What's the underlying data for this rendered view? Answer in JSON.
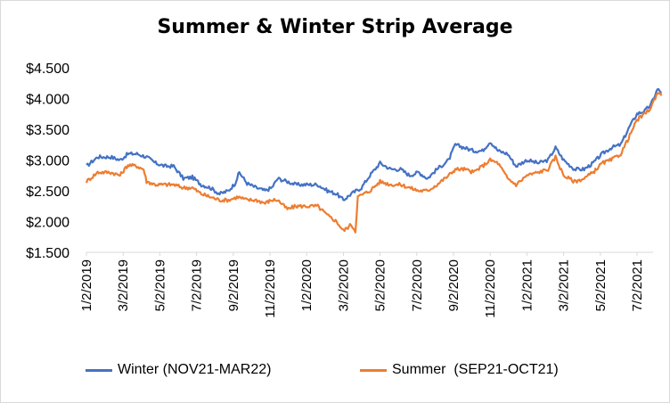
{
  "chart_data": {
    "type": "line",
    "title": "Summer & Winter Strip Average",
    "xlabel": "",
    "ylabel": "",
    "ylim": [
      1.5,
      4.5
    ],
    "yticks": [
      "$4.500",
      "$4.000",
      "$3.500",
      "$3.000",
      "$2.500",
      "$2.000",
      "$1.500"
    ],
    "ytick_values": [
      4.5,
      4.0,
      3.5,
      3.0,
      2.5,
      2.0,
      1.5
    ],
    "xticks": [
      "1/2/2019",
      "3/2/2019",
      "5/2/2019",
      "7/2/2019",
      "9/2/2019",
      "11/2/2019",
      "1/2/2020",
      "3/2/2020",
      "5/2/2020",
      "7/2/2020",
      "9/2/2020",
      "11/2/2020",
      "1/2/2021",
      "3/2/2021",
      "5/2/2021",
      "7/2/2021"
    ],
    "grid": false,
    "legend_position": "bottom",
    "series": [
      {
        "name": "Winter (NOV21-MAR22)",
        "color": "#4472c4",
        "points": [
          [
            "2019-01-02",
            2.9
          ],
          [
            "2019-01-20",
            3.05
          ],
          [
            "2019-02-10",
            3.05
          ],
          [
            "2019-02-25",
            3.0
          ],
          [
            "2019-03-10",
            3.1
          ],
          [
            "2019-03-25",
            3.1
          ],
          [
            "2019-04-10",
            3.05
          ],
          [
            "2019-04-25",
            2.95
          ],
          [
            "2019-05-10",
            2.9
          ],
          [
            "2019-05-25",
            2.9
          ],
          [
            "2019-06-10",
            2.7
          ],
          [
            "2019-06-25",
            2.72
          ],
          [
            "2019-07-10",
            2.6
          ],
          [
            "2019-07-25",
            2.55
          ],
          [
            "2019-08-10",
            2.45
          ],
          [
            "2019-08-25",
            2.5
          ],
          [
            "2019-09-05",
            2.62
          ],
          [
            "2019-09-12",
            2.8
          ],
          [
            "2019-09-25",
            2.62
          ],
          [
            "2019-10-10",
            2.55
          ],
          [
            "2019-10-25",
            2.5
          ],
          [
            "2019-11-05",
            2.55
          ],
          [
            "2019-11-15",
            2.7
          ],
          [
            "2019-12-01",
            2.65
          ],
          [
            "2019-12-15",
            2.6
          ],
          [
            "2020-01-02",
            2.6
          ],
          [
            "2020-01-20",
            2.6
          ],
          [
            "2020-02-05",
            2.5
          ],
          [
            "2020-02-20",
            2.45
          ],
          [
            "2020-03-02",
            2.35
          ],
          [
            "2020-03-15",
            2.45
          ],
          [
            "2020-04-01",
            2.55
          ],
          [
            "2020-04-15",
            2.75
          ],
          [
            "2020-05-02",
            2.95
          ],
          [
            "2020-05-20",
            2.85
          ],
          [
            "2020-06-05",
            2.85
          ],
          [
            "2020-06-20",
            2.75
          ],
          [
            "2020-07-05",
            2.8
          ],
          [
            "2020-07-20",
            2.7
          ],
          [
            "2020-08-05",
            2.85
          ],
          [
            "2020-08-25",
            3.0
          ],
          [
            "2020-09-05",
            3.25
          ],
          [
            "2020-09-20",
            3.2
          ],
          [
            "2020-10-05",
            3.15
          ],
          [
            "2020-10-20",
            3.15
          ],
          [
            "2020-11-02",
            3.3
          ],
          [
            "2020-11-15",
            3.15
          ],
          [
            "2020-12-01",
            3.1
          ],
          [
            "2020-12-15",
            2.9
          ],
          [
            "2021-01-02",
            3.0
          ],
          [
            "2021-01-20",
            2.95
          ],
          [
            "2021-02-05",
            3.0
          ],
          [
            "2021-02-17",
            3.2
          ],
          [
            "2021-03-02",
            3.0
          ],
          [
            "2021-03-20",
            2.85
          ],
          [
            "2021-04-05",
            2.85
          ],
          [
            "2021-04-20",
            2.95
          ],
          [
            "2021-05-05",
            3.1
          ],
          [
            "2021-05-20",
            3.2
          ],
          [
            "2021-06-05",
            3.25
          ],
          [
            "2021-06-20",
            3.55
          ],
          [
            "2021-07-02",
            3.75
          ],
          [
            "2021-07-15",
            3.8
          ],
          [
            "2021-07-25",
            3.9
          ],
          [
            "2021-08-05",
            4.15
          ],
          [
            "2021-08-12",
            4.1
          ]
        ]
      },
      {
        "name": "Summer  (SEP21-OCT21)",
        "color": "#ed7d31",
        "points": [
          [
            "2019-01-02",
            2.65
          ],
          [
            "2019-01-20",
            2.8
          ],
          [
            "2019-02-10",
            2.8
          ],
          [
            "2019-02-25",
            2.75
          ],
          [
            "2019-03-10",
            2.92
          ],
          [
            "2019-03-25",
            2.9
          ],
          [
            "2019-04-05",
            2.85
          ],
          [
            "2019-04-10",
            2.65
          ],
          [
            "2019-04-25",
            2.6
          ],
          [
            "2019-05-10",
            2.6
          ],
          [
            "2019-05-25",
            2.6
          ],
          [
            "2019-06-10",
            2.55
          ],
          [
            "2019-06-25",
            2.55
          ],
          [
            "2019-07-10",
            2.45
          ],
          [
            "2019-07-25",
            2.4
          ],
          [
            "2019-08-10",
            2.35
          ],
          [
            "2019-08-25",
            2.35
          ],
          [
            "2019-09-10",
            2.4
          ],
          [
            "2019-09-25",
            2.35
          ],
          [
            "2019-10-10",
            2.35
          ],
          [
            "2019-10-25",
            2.3
          ],
          [
            "2019-11-05",
            2.35
          ],
          [
            "2019-11-15",
            2.35
          ],
          [
            "2019-12-01",
            2.2
          ],
          [
            "2019-12-15",
            2.25
          ],
          [
            "2020-01-02",
            2.25
          ],
          [
            "2020-01-20",
            2.25
          ],
          [
            "2020-02-05",
            2.1
          ],
          [
            "2020-02-20",
            2.0
          ],
          [
            "2020-03-02",
            1.85
          ],
          [
            "2020-03-15",
            1.95
          ],
          [
            "2020-03-22",
            1.85
          ],
          [
            "2020-03-26",
            2.4
          ],
          [
            "2020-04-15",
            2.5
          ],
          [
            "2020-05-02",
            2.65
          ],
          [
            "2020-05-20",
            2.6
          ],
          [
            "2020-06-05",
            2.6
          ],
          [
            "2020-06-20",
            2.55
          ],
          [
            "2020-07-05",
            2.5
          ],
          [
            "2020-07-20",
            2.5
          ],
          [
            "2020-08-05",
            2.6
          ],
          [
            "2020-08-25",
            2.75
          ],
          [
            "2020-09-05",
            2.85
          ],
          [
            "2020-09-20",
            2.85
          ],
          [
            "2020-10-05",
            2.8
          ],
          [
            "2020-10-20",
            2.9
          ],
          [
            "2020-11-02",
            3.0
          ],
          [
            "2020-11-15",
            2.95
          ],
          [
            "2020-12-01",
            2.7
          ],
          [
            "2020-12-15",
            2.6
          ],
          [
            "2021-01-02",
            2.75
          ],
          [
            "2021-01-20",
            2.8
          ],
          [
            "2021-02-05",
            2.85
          ],
          [
            "2021-02-17",
            3.05
          ],
          [
            "2021-03-02",
            2.75
          ],
          [
            "2021-03-20",
            2.65
          ],
          [
            "2021-04-05",
            2.7
          ],
          [
            "2021-04-20",
            2.8
          ],
          [
            "2021-05-05",
            2.95
          ],
          [
            "2021-05-20",
            3.0
          ],
          [
            "2021-06-05",
            3.1
          ],
          [
            "2021-06-20",
            3.4
          ],
          [
            "2021-07-02",
            3.65
          ],
          [
            "2021-07-15",
            3.75
          ],
          [
            "2021-07-25",
            3.85
          ],
          [
            "2021-08-05",
            4.1
          ],
          [
            "2021-08-12",
            4.05
          ]
        ]
      }
    ]
  }
}
